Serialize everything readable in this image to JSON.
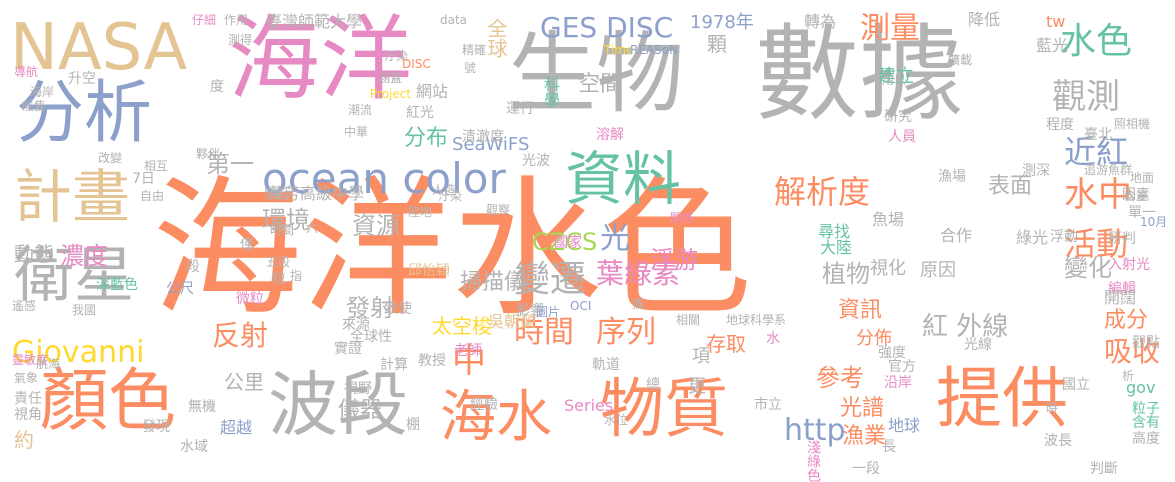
{
  "palette": {
    "orange": "#fc8d62",
    "grey": "#b3b3b3",
    "green": "#66c2a5",
    "blue": "#8da0cb",
    "pink": "#e78ac3",
    "lime": "#a6d854",
    "yellow": "#ffd92f",
    "tan": "#e5c494"
  },
  "words": [
    {
      "text": "海洋水色",
      "color": "orange"
    },
    {
      "text": "數據",
      "color": "grey"
    },
    {
      "text": "海洋",
      "color": "pink"
    },
    {
      "text": "生物",
      "color": "grey"
    },
    {
      "text": "NASA",
      "color": "tan"
    },
    {
      "text": "分析",
      "color": "blue"
    },
    {
      "text": "資料",
      "color": "green"
    },
    {
      "text": "計畫",
      "color": "tan"
    },
    {
      "text": "衛星",
      "color": "grey"
    },
    {
      "text": "顏色",
      "color": "orange"
    },
    {
      "text": "波段",
      "color": "grey"
    },
    {
      "text": "海水",
      "color": "orange"
    },
    {
      "text": "物質",
      "color": "orange"
    },
    {
      "text": "提供",
      "color": "orange"
    },
    {
      "text": "ocean color",
      "color": "blue"
    },
    {
      "text": "GES DISC",
      "color": "blue"
    },
    {
      "text": "水色",
      "color": "green"
    },
    {
      "text": "觀測",
      "color": "grey"
    },
    {
      "text": "近紅",
      "color": "blue"
    },
    {
      "text": "水中",
      "color": "orange"
    },
    {
      "text": "活動",
      "color": "orange"
    },
    {
      "text": "解析度",
      "color": "orange"
    },
    {
      "text": "測量",
      "color": "orange"
    },
    {
      "text": "Giovanni",
      "color": "yellow"
    },
    {
      "text": "變遷",
      "color": "grey"
    },
    {
      "text": "時間",
      "color": "orange"
    },
    {
      "text": "序列",
      "color": "orange"
    },
    {
      "text": "葉綠素",
      "color": "pink"
    },
    {
      "text": "紅 外線",
      "color": "grey"
    },
    {
      "text": "反射",
      "color": "orange"
    },
    {
      "text": "吸收",
      "color": "orange"
    },
    {
      "text": "http",
      "color": "blue"
    },
    {
      "text": "中",
      "color": "orange"
    },
    {
      "text": "光",
      "color": "blue"
    },
    {
      "text": "環境",
      "color": "grey"
    },
    {
      "text": "分布",
      "color": "green"
    },
    {
      "text": "第一",
      "color": "grey"
    },
    {
      "text": "資源",
      "color": "grey"
    },
    {
      "text": "濃度",
      "color": "pink"
    },
    {
      "text": "動態",
      "color": "grey"
    },
    {
      "text": "CZCS",
      "color": "lime"
    },
    {
      "text": "發射",
      "color": "grey"
    },
    {
      "text": "植物",
      "color": "grey"
    },
    {
      "text": "浮游",
      "color": "pink"
    },
    {
      "text": "變化",
      "color": "grey"
    },
    {
      "text": "表面",
      "color": "grey"
    },
    {
      "text": "空間",
      "color": "grey"
    },
    {
      "text": "全球",
      "color": "tan"
    },
    {
      "text": "1978年",
      "color": "blue"
    },
    {
      "text": "顆",
      "color": "grey"
    },
    {
      "text": "成分",
      "color": "orange"
    },
    {
      "text": "光譜",
      "color": "orange"
    },
    {
      "text": "漁業",
      "color": "orange"
    },
    {
      "text": "參考",
      "color": "orange"
    },
    {
      "text": "公里",
      "color": "grey"
    },
    {
      "text": "儀器",
      "color": "grey"
    },
    {
      "text": "資訊",
      "color": "orange"
    },
    {
      "text": "掃描儀",
      "color": "grey"
    },
    {
      "text": "太空梭",
      "color": "yellow"
    },
    {
      "text": "SeaWiFS",
      "color": "blue"
    },
    {
      "text": "萬芳高級中學",
      "color": "grey"
    },
    {
      "text": "臺灣師範大學",
      "color": "grey"
    },
    {
      "text": "視化",
      "color": "grey"
    },
    {
      "text": "原因",
      "color": "grey"
    },
    {
      "text": "分佈",
      "color": "orange"
    },
    {
      "text": "存取",
      "color": "orange"
    },
    {
      "text": "更",
      "color": "grey"
    },
    {
      "text": "項",
      "color": "grey"
    },
    {
      "text": "建立",
      "color": "green"
    },
    {
      "text": "tw",
      "color": "orange"
    },
    {
      "text": "gov",
      "color": "green"
    },
    {
      "text": "約",
      "color": "tan"
    },
    {
      "text": "降低",
      "color": "grey"
    },
    {
      "text": "藍光",
      "color": "grey"
    },
    {
      "text": "轉為",
      "color": "grey"
    },
    {
      "text": "科學",
      "color": "green"
    },
    {
      "text": "網站",
      "color": "grey"
    },
    {
      "text": "運行",
      "color": "grey"
    },
    {
      "text": "清澈度",
      "color": "grey"
    },
    {
      "text": "光波",
      "color": "grey"
    },
    {
      "text": "溶解",
      "color": "pink"
    },
    {
      "text": "研究",
      "color": "grey"
    },
    {
      "text": "人員",
      "color": "pink"
    },
    {
      "text": "程度",
      "color": "grey"
    },
    {
      "text": "臺北",
      "color": "grey"
    },
    {
      "text": "照相機",
      "color": "grey"
    },
    {
      "text": "追游魚群",
      "color": "grey"
    },
    {
      "text": "地面",
      "color": "grey"
    },
    {
      "text": "測深",
      "color": "grey"
    },
    {
      "text": "漁場",
      "color": "grey"
    },
    {
      "text": "魚場",
      "color": "grey"
    },
    {
      "text": "尋找",
      "color": "green"
    },
    {
      "text": "大陸",
      "color": "green"
    },
    {
      "text": "合作",
      "color": "grey"
    },
    {
      "text": "綠光",
      "color": "grey"
    },
    {
      "text": "浮動",
      "color": "grey"
    },
    {
      "text": "研判",
      "color": "grey"
    },
    {
      "text": "10月",
      "color": "blue"
    },
    {
      "text": "單一",
      "color": "grey"
    },
    {
      "text": "因素",
      "color": "grey"
    },
    {
      "text": "入射光",
      "color": "pink"
    },
    {
      "text": "編輯",
      "color": "pink"
    },
    {
      "text": "開闊",
      "color": "grey"
    },
    {
      "text": "觀點",
      "color": "grey"
    },
    {
      "text": "國立",
      "color": "grey"
    },
    {
      "text": "粒子",
      "color": "green"
    },
    {
      "text": "含有",
      "color": "green"
    },
    {
      "text": "高度",
      "color": "grey"
    },
    {
      "text": "判斷",
      "color": "grey"
    },
    {
      "text": "波長",
      "color": "grey"
    },
    {
      "text": "地球",
      "color": "blue"
    },
    {
      "text": "長",
      "color": "grey"
    },
    {
      "text": "一段",
      "color": "grey"
    },
    {
      "text": "淺綠色",
      "color": "pink"
    },
    {
      "text": "市立",
      "color": "grey"
    },
    {
      "text": "沿岸",
      "color": "pink"
    },
    {
      "text": "強度",
      "color": "grey"
    },
    {
      "text": "官方",
      "color": "grey"
    },
    {
      "text": "光線",
      "color": "grey"
    },
    {
      "text": "水",
      "color": "pink"
    },
    {
      "text": "地球科學系",
      "color": "grey"
    },
    {
      "text": "軌道",
      "color": "grey"
    },
    {
      "text": "總",
      "color": "grey"
    },
    {
      "text": "Series",
      "color": "pink"
    },
    {
      "text": "水位",
      "color": "grey"
    },
    {
      "text": "經驗",
      "color": "grey"
    },
    {
      "text": "棚",
      "color": "grey"
    },
    {
      "text": "無機",
      "color": "grey"
    },
    {
      "text": "超越",
      "color": "blue"
    },
    {
      "text": "水域",
      "color": "grey"
    },
    {
      "text": "發現",
      "color": "grey"
    },
    {
      "text": "視野",
      "color": "grey"
    },
    {
      "text": "計算",
      "color": "grey"
    },
    {
      "text": "教授",
      "color": "grey"
    },
    {
      "text": "老師",
      "color": "pink"
    },
    {
      "text": "實證",
      "color": "grey"
    },
    {
      "text": "全球性",
      "color": "grey"
    },
    {
      "text": "遙感",
      "color": "grey"
    },
    {
      "text": "深藍色",
      "color": "green"
    },
    {
      "text": "公尺",
      "color": "blue"
    },
    {
      "text": "靈敏度",
      "color": "pink"
    },
    {
      "text": "航海",
      "color": "grey"
    },
    {
      "text": "責任",
      "color": "grey"
    },
    {
      "text": "視角",
      "color": "grey"
    },
    {
      "text": "氣象",
      "color": "grey"
    },
    {
      "text": "我國",
      "color": "grey"
    },
    {
      "text": "僅",
      "color": "grey"
    },
    {
      "text": "微粒",
      "color": "pink"
    },
    {
      "text": "來源",
      "color": "grey"
    },
    {
      "text": "致使",
      "color": "grey"
    },
    {
      "text": "邱怡穎",
      "color": "tan"
    },
    {
      "text": "吳朝榮",
      "color": "tan"
    },
    {
      "text": "影響",
      "color": "grey"
    },
    {
      "text": "圖片",
      "color": "blue"
    },
    {
      "text": "OCI",
      "color": "blue"
    },
    {
      "text": "相關",
      "color": "grey"
    },
    {
      "text": "攜",
      "color": "grey"
    },
    {
      "text": "國家",
      "color": "pink"
    },
    {
      "text": "觀察",
      "color": "grey"
    },
    {
      "text": "陸地",
      "color": "grey"
    },
    {
      "text": "汙染",
      "color": "grey"
    },
    {
      "text": "人造",
      "color": "grey"
    },
    {
      "text": "照相",
      "color": "grey"
    },
    {
      "text": "時間",
      "color": "grey"
    },
    {
      "text": "六",
      "color": "grey"
    },
    {
      "text": "粒",
      "color": "grey"
    },
    {
      "text": "指",
      "color": "grey"
    },
    {
      "text": "五段",
      "color": "grey"
    },
    {
      "text": "段",
      "color": "grey"
    },
    {
      "text": "關係",
      "color": "pink"
    },
    {
      "text": "夥伴",
      "color": "grey"
    },
    {
      "text": "7日",
      "color": "grey"
    },
    {
      "text": "自由",
      "color": "grey"
    },
    {
      "text": "相互",
      "color": "grey"
    },
    {
      "text": "改變",
      "color": "grey"
    },
    {
      "text": "中華",
      "color": "grey"
    },
    {
      "text": "紅光",
      "color": "grey"
    },
    {
      "text": "潮流",
      "color": "grey"
    },
    {
      "text": "Project",
      "color": "yellow"
    },
    {
      "text": "涵蓋",
      "color": "grey"
    },
    {
      "text": "汙染",
      "color": "grey"
    },
    {
      "text": "DISC",
      "color": "orange"
    },
    {
      "text": "號",
      "color": "grey"
    },
    {
      "text": "精確",
      "color": "grey"
    },
    {
      "text": "測得",
      "color": "grey"
    },
    {
      "text": "仔細",
      "color": "pink"
    },
    {
      "text": "導航",
      "color": "pink"
    },
    {
      "text": "海岸",
      "color": "grey"
    },
    {
      "text": "升空",
      "color": "grey"
    },
    {
      "text": "度",
      "color": "grey"
    },
    {
      "text": "船隻",
      "color": "grey"
    },
    {
      "text": "data",
      "color": "grey"
    },
    {
      "text": "作用",
      "color": "grey"
    },
    {
      "text": "Time",
      "color": "yellow"
    },
    {
      "text": "REASoN",
      "color": "blue"
    },
    {
      "text": "擴載",
      "color": "grey"
    },
    {
      "text": "用以",
      "color": "grey"
    },
    {
      "text": "析",
      "color": "grey"
    },
    {
      "text": "時",
      "color": "grey"
    },
    {
      "text": "含量",
      "color": "grey"
    }
  ]
}
